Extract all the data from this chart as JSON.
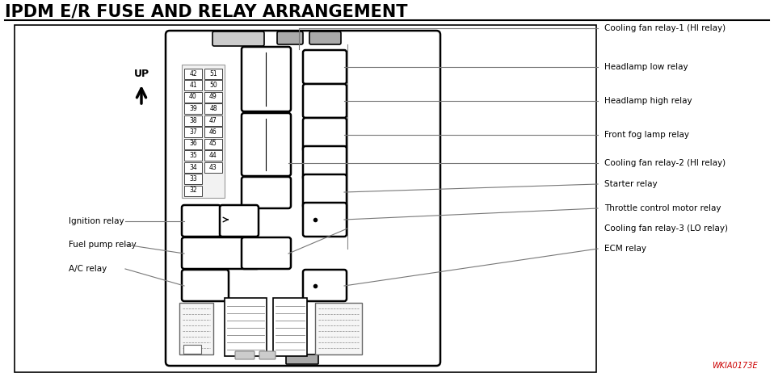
{
  "title": "IPDM E/R FUSE AND RELAY ARRANGEMENT",
  "title_fontsize": 15,
  "title_fontweight": "bold",
  "background_color": "#ffffff",
  "fuse_left": [
    42,
    41,
    40,
    39,
    38,
    37,
    36,
    35,
    34,
    33,
    32
  ],
  "fuse_right": [
    51,
    50,
    49,
    48,
    47,
    46,
    45,
    44,
    43,
    "",
    ""
  ],
  "labels_right": [
    "Cooling fan relay-1 (HI relay)",
    "Headlamp low relay",
    "Headlamp high relay",
    "Front fog lamp relay",
    "Cooling fan relay-2 (HI relay)",
    "Starter relay",
    "Throttle control motor relay",
    "Cooling fan relay-3 (LO relay)",
    "ECM relay"
  ],
  "labels_left": [
    "Ignition relay",
    "Fuel pump relay",
    "A/C relay"
  ],
  "watermark": "WKIA0173E",
  "up_label": "UP"
}
